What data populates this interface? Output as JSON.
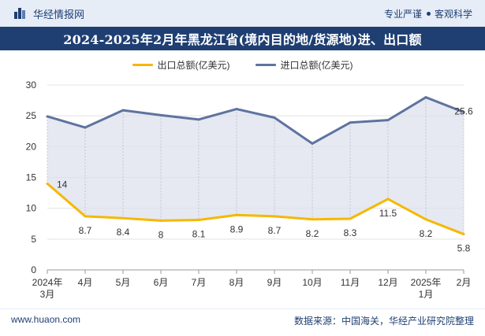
{
  "header": {
    "brand": "华经情报网",
    "tag1": "专业严谨",
    "tag2": "客观科学"
  },
  "title": "2024-2025年2月年黑龙江省(境内目的地/货源地)进、出口额",
  "footer": {
    "url": "www.huaon.com",
    "source": "数据来源：中国海关，华经产业研究院整理"
  },
  "colors": {
    "export": "#f5b800",
    "import": "#5e73a0",
    "fill": "#dde1ec",
    "brand": "#1f3f73"
  },
  "chart_data": {
    "type": "line",
    "categories": [
      "2024年\n3月",
      "4月",
      "5月",
      "6月",
      "7月",
      "8月",
      "9月",
      "10月",
      "11月",
      "12月",
      "2025年\n1月",
      "2月"
    ],
    "series": [
      {
        "name": "出口总额(亿美元)",
        "values": [
          14,
          8.7,
          8.4,
          8,
          8.1,
          8.9,
          8.7,
          8.2,
          8.3,
          11.5,
          8.2,
          5.8
        ],
        "labels": [
          "14",
          "8.7",
          "8.4",
          "8",
          "8.1",
          "8.9",
          "8.7",
          "8.2",
          "8.3",
          "11.5",
          "8.2",
          "5.8"
        ]
      },
      {
        "name": "进口总额(亿美元)",
        "values": [
          24.9,
          23.1,
          25.9,
          25.1,
          24.4,
          26.1,
          24.7,
          20.5,
          23.9,
          24.3,
          28.0,
          25.6
        ],
        "labels": [
          "",
          "",
          "",
          "",
          "",
          "",
          "",
          "",
          "",
          "",
          "",
          "25.6"
        ]
      }
    ],
    "yticks": [
      0,
      5,
      10,
      15,
      20,
      25,
      30
    ],
    "ylim": [
      0,
      30
    ]
  }
}
